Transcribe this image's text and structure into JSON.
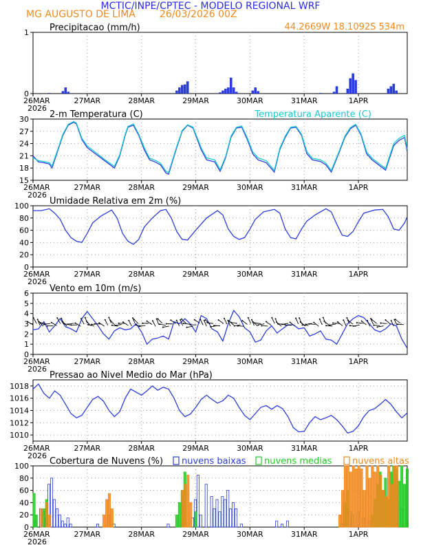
{
  "header": {
    "title": "MCTIC/INPE/CPTEC - MODELO REGIONAL WRF",
    "location": "MG AUGUSTO DE LIMA",
    "run": "26/03/2026 00Z",
    "coords": "44.2669W 18.1092S 534m"
  },
  "colors": {
    "title": "#2a2ae6",
    "orange": "#f08a1e",
    "blue": "#2a3cdc",
    "cyan": "#18c8d0",
    "green": "#22cc22",
    "grid": "#999999"
  },
  "xaxis": {
    "ticks": [
      {
        "label": "26MAR",
        "sub": "2026",
        "day": 0
      },
      {
        "label": "27MAR",
        "sub": "",
        "day": 1
      },
      {
        "label": "28MAR",
        "sub": "",
        "day": 2
      },
      {
        "label": "29MAR",
        "sub": "",
        "day": 3
      },
      {
        "label": "30MAR",
        "sub": "",
        "day": 4
      },
      {
        "label": "31MAR",
        "sub": "",
        "day": 5
      },
      {
        "label": "1APR",
        "sub": "",
        "day": 6
      }
    ],
    "range_days": [
      0,
      6.9
    ]
  },
  "chart_data": [
    {
      "id": "precip",
      "type": "bar",
      "title": "Precipitacao (mm/h)",
      "ylim": [
        0,
        1
      ],
      "yticks": [
        "0",
        "1"
      ],
      "x_days": [
        0.3,
        0.55,
        0.6,
        0.65,
        2.65,
        2.7,
        2.75,
        2.8,
        2.85,
        3.45,
        3.5,
        3.55,
        3.6,
        3.65,
        3.7,
        3.75,
        4.05,
        4.1,
        4.15,
        5.3,
        5.55,
        5.6,
        5.8,
        5.85,
        5.9,
        5.95,
        6.55,
        6.6,
        6.65,
        6.7
      ],
      "values": [
        0.01,
        0.04,
        0.1,
        0.03,
        0.05,
        0.1,
        0.14,
        0.15,
        0.2,
        0.02,
        0.05,
        0.08,
        0.1,
        0.26,
        0.1,
        0.03,
        0.05,
        0.1,
        0.04,
        0.01,
        0.03,
        0.12,
        0.08,
        0.25,
        0.33,
        0.22,
        0.08,
        0.12,
        0.16,
        0.05
      ]
    },
    {
      "id": "temp",
      "type": "line",
      "title": "2-m Temperatura (C)",
      "legend": "Temperatura Aparente (C)",
      "ylim": [
        15,
        30
      ],
      "yticks": [
        "15",
        "18",
        "21",
        "24",
        "27",
        "30"
      ],
      "series": [
        {
          "name": "2-m Temperatura (C)",
          "x_days": [
            0,
            0.1,
            0.2,
            0.3,
            0.35,
            0.45,
            0.55,
            0.65,
            0.75,
            0.8,
            0.9,
            1.0,
            1.1,
            1.3,
            1.5,
            1.6,
            1.7,
            1.75,
            1.85,
            1.95,
            2.05,
            2.15,
            2.25,
            2.35,
            2.45,
            2.5,
            2.65,
            2.75,
            2.85,
            2.95,
            3.1,
            3.2,
            3.35,
            3.45,
            3.55,
            3.65,
            3.75,
            3.85,
            3.95,
            4.05,
            4.15,
            4.3,
            4.45,
            4.55,
            4.65,
            4.75,
            4.85,
            4.95,
            5.05,
            5.15,
            5.3,
            5.4,
            5.5,
            5.65,
            5.75,
            5.85,
            5.95,
            6.05,
            6.15,
            6.25,
            6.4,
            6.5,
            6.65,
            6.75,
            6.85,
            6.9
          ],
          "values": [
            21,
            19.5,
            19.3,
            19,
            18,
            22,
            26,
            28.5,
            29.2,
            28.8,
            25,
            23,
            22,
            20,
            18,
            21,
            26,
            28,
            28.5,
            26,
            22.5,
            20,
            19.5,
            18.8,
            16.8,
            16.5,
            23,
            27,
            28.5,
            27.8,
            22.5,
            20,
            19.5,
            17.2,
            20.5,
            25.5,
            27.8,
            28,
            25,
            21.5,
            20,
            19.3,
            17,
            22.5,
            25.5,
            27.8,
            28,
            26,
            21.5,
            20,
            19.6,
            18.8,
            17,
            22,
            25.5,
            27.6,
            28.5,
            26,
            21.5,
            20,
            18.5,
            17.5,
            23.5,
            24.8,
            25.5,
            22
          ]
        },
        {
          "name": "Temperatura Aparente (C)",
          "x_days": [
            0,
            0.1,
            0.2,
            0.3,
            0.35,
            0.45,
            0.55,
            0.65,
            0.75,
            0.8,
            0.9,
            1.0,
            1.1,
            1.3,
            1.5,
            1.6,
            1.7,
            1.75,
            1.85,
            1.95,
            2.05,
            2.15,
            2.25,
            2.35,
            2.45,
            2.5,
            2.65,
            2.75,
            2.85,
            2.95,
            3.1,
            3.2,
            3.35,
            3.45,
            3.55,
            3.65,
            3.75,
            3.85,
            3.95,
            4.05,
            4.15,
            4.3,
            4.45,
            4.55,
            4.65,
            4.75,
            4.85,
            4.95,
            5.05,
            5.15,
            5.3,
            5.4,
            5.5,
            5.65,
            5.75,
            5.85,
            5.95,
            6.05,
            6.15,
            6.25,
            6.4,
            6.5,
            6.65,
            6.75,
            6.85,
            6.9
          ],
          "values": [
            20.5,
            19.8,
            19.6,
            19.3,
            18.5,
            22.3,
            26.3,
            28.7,
            29.4,
            29,
            25.3,
            23.4,
            22.4,
            20.3,
            18.4,
            21.3,
            26.3,
            28.2,
            28.8,
            26.3,
            23,
            20.4,
            19.9,
            19.2,
            17.2,
            16.9,
            23.3,
            27.2,
            28.6,
            28,
            23,
            20.5,
            20,
            17.6,
            20.8,
            25.8,
            28,
            28.3,
            25.4,
            22,
            20.5,
            19.8,
            17.4,
            22.8,
            25.8,
            28,
            28.2,
            26.3,
            22,
            20.4,
            20,
            19.2,
            17.4,
            22.3,
            25.8,
            27.9,
            28.7,
            26.3,
            22,
            20.4,
            18.9,
            17.9,
            24,
            25.3,
            26,
            22.6
          ]
        }
      ]
    },
    {
      "id": "rh",
      "type": "line",
      "title": "Umidade Relativa em 2m (%)",
      "ylim": [
        0,
        100
      ],
      "yticks": [
        "0",
        "20",
        "40",
        "60",
        "80",
        "100"
      ],
      "series": [
        {
          "name": "Umidade Relativa",
          "x_days": [
            0,
            0.15,
            0.3,
            0.4,
            0.5,
            0.6,
            0.7,
            0.8,
            0.9,
            1.0,
            1.1,
            1.25,
            1.45,
            1.55,
            1.65,
            1.75,
            1.85,
            1.95,
            2.05,
            2.2,
            2.35,
            2.45,
            2.55,
            2.65,
            2.75,
            2.85,
            3.0,
            3.2,
            3.4,
            3.5,
            3.6,
            3.7,
            3.8,
            3.9,
            4.0,
            4.1,
            4.25,
            4.45,
            4.55,
            4.65,
            4.75,
            4.85,
            4.95,
            5.05,
            5.2,
            5.4,
            5.5,
            5.6,
            5.7,
            5.8,
            5.9,
            6.0,
            6.1,
            6.3,
            6.45,
            6.55,
            6.65,
            6.75,
            6.85,
            6.9
          ],
          "values": [
            92,
            92,
            95,
            88,
            78,
            60,
            48,
            42,
            40,
            55,
            72,
            83,
            93,
            80,
            55,
            42,
            37,
            45,
            65,
            80,
            92,
            94,
            80,
            58,
            45,
            44,
            60,
            80,
            92,
            85,
            62,
            50,
            45,
            48,
            62,
            78,
            90,
            94,
            88,
            62,
            48,
            46,
            62,
            75,
            85,
            95,
            90,
            70,
            52,
            50,
            58,
            74,
            88,
            93,
            94,
            82,
            62,
            60,
            72,
            82
          ]
        }
      ]
    },
    {
      "id": "wind",
      "type": "line",
      "title": "Vento em 10m (m/s)",
      "ylim": [
        0,
        6
      ],
      "yticks": [
        "0",
        "1",
        "2",
        "3",
        "4",
        "5",
        "6"
      ],
      "series": [
        {
          "name": "Vento",
          "x_days": [
            0,
            0.1,
            0.2,
            0.3,
            0.4,
            0.5,
            0.6,
            0.7,
            0.8,
            0.9,
            1.0,
            1.1,
            1.2,
            1.3,
            1.4,
            1.5,
            1.6,
            1.7,
            1.8,
            1.9,
            2.0,
            2.1,
            2.2,
            2.3,
            2.4,
            2.5,
            2.6,
            2.7,
            2.8,
            2.9,
            3.0,
            3.1,
            3.2,
            3.3,
            3.4,
            3.5,
            3.6,
            3.7,
            3.8,
            3.9,
            4.0,
            4.1,
            4.2,
            4.3,
            4.4,
            4.5,
            4.6,
            4.7,
            4.8,
            4.9,
            5.0,
            5.1,
            5.2,
            5.3,
            5.4,
            5.5,
            5.6,
            5.7,
            5.8,
            5.9,
            6.0,
            6.1,
            6.2,
            6.3,
            6.4,
            6.5,
            6.6,
            6.7,
            6.8,
            6.9
          ],
          "values": [
            2.4,
            2.5,
            3.2,
            2.2,
            2.8,
            3.5,
            2.7,
            2.5,
            2.2,
            3.5,
            4.2,
            3.5,
            2.8,
            2.0,
            1.5,
            2.3,
            2.6,
            2.4,
            2.5,
            3.0,
            2.2,
            1.0,
            1.5,
            1.6,
            1.8,
            1.5,
            3.2,
            3.0,
            3.5,
            3.0,
            2.2,
            3.8,
            3.5,
            2.5,
            2.2,
            1.3,
            3.0,
            4.3,
            3.7,
            2.6,
            2.2,
            1.2,
            1.4,
            2.3,
            2.8,
            2.1,
            2.5,
            2.9,
            2.9,
            2.5,
            2.6,
            1.8,
            2.0,
            2.3,
            1.5,
            1.4,
            1.0,
            2.0,
            3.0,
            3.5,
            3.8,
            3.6,
            3.0,
            2.4,
            2.2,
            2.5,
            3.0,
            2.8,
            1.5,
            0.6
          ]
        }
      ]
    },
    {
      "id": "pressure",
      "type": "line",
      "title": "Pressao ao Nivel Medio do Mar (hPa)",
      "ylim": [
        1009,
        1019
      ],
      "yticks": [
        "1010",
        "1012",
        "1014",
        "1016",
        "1018"
      ],
      "series": [
        {
          "name": "Pressao",
          "x_days": [
            0,
            0.1,
            0.2,
            0.3,
            0.4,
            0.5,
            0.6,
            0.7,
            0.8,
            0.9,
            1.0,
            1.1,
            1.2,
            1.3,
            1.4,
            1.5,
            1.6,
            1.7,
            1.8,
            1.9,
            2.0,
            2.1,
            2.2,
            2.3,
            2.4,
            2.5,
            2.6,
            2.7,
            2.8,
            2.9,
            3.0,
            3.1,
            3.2,
            3.3,
            3.4,
            3.5,
            3.6,
            3.7,
            3.8,
            3.9,
            4.0,
            4.1,
            4.2,
            4.3,
            4.4,
            4.5,
            4.6,
            4.7,
            4.8,
            4.9,
            5.0,
            5.1,
            5.2,
            5.3,
            5.4,
            5.5,
            5.6,
            5.7,
            5.8,
            5.9,
            6.0,
            6.1,
            6.2,
            6.3,
            6.4,
            6.5,
            6.6,
            6.7,
            6.8,
            6.9
          ],
          "values": [
            1017.5,
            1018.3,
            1016.8,
            1016.0,
            1017.2,
            1016.5,
            1015.0,
            1013.5,
            1012.8,
            1013.2,
            1014.5,
            1015.8,
            1016.3,
            1015.5,
            1014.0,
            1013.0,
            1013.8,
            1016.0,
            1017.5,
            1017.0,
            1016.5,
            1017.2,
            1018.0,
            1017.3,
            1017.8,
            1017.5,
            1016.0,
            1014.0,
            1013.0,
            1013.4,
            1014.5,
            1015.8,
            1016.5,
            1015.8,
            1015.2,
            1015.6,
            1016.5,
            1016.0,
            1014.5,
            1013.2,
            1012.5,
            1013.5,
            1014.5,
            1014.8,
            1014.2,
            1014.8,
            1014.3,
            1013.0,
            1011.2,
            1010.5,
            1010.6,
            1012.0,
            1013.0,
            1012.5,
            1012.8,
            1013.2,
            1012.5,
            1011.5,
            1010.3,
            1010.6,
            1011.5,
            1013.0,
            1014.0,
            1014.3,
            1015.0,
            1015.8,
            1015.0,
            1013.8,
            1012.8,
            1013.6
          ]
        }
      ]
    },
    {
      "id": "clouds",
      "type": "bar",
      "title": "Cobertura de Nuvens (%)",
      "legend": [
        "nuvens baixas",
        "nuvens medias",
        "nuvens altas"
      ],
      "ylim": [
        0,
        100
      ],
      "yticks": [
        "0",
        "20",
        "40",
        "60",
        "80",
        "100"
      ],
      "series": [
        {
          "name": "nuvens baixas",
          "x_days": [
            0.05,
            0.15,
            0.2,
            0.25,
            0.3,
            0.35,
            0.4,
            0.45,
            0.5,
            0.55,
            0.6,
            0.65,
            0.7,
            1.2,
            1.4,
            1.5,
            2.5,
            2.75,
            2.95,
            3.0,
            3.05,
            3.1,
            3.2,
            3.3,
            3.35,
            3.4,
            3.45,
            3.5,
            3.55,
            3.6,
            3.65,
            3.7,
            3.75,
            3.85,
            4.5,
            4.6,
            4.7,
            5.7,
            5.75,
            5.8,
            5.85,
            5.9,
            6.0,
            6.1,
            6.2,
            6.4,
            6.7,
            6.8,
            6.9
          ],
          "values": [
            10,
            30,
            25,
            15,
            70,
            80,
            45,
            30,
            20,
            10,
            5,
            15,
            5,
            5,
            20,
            5,
            5,
            5,
            15,
            45,
            85,
            20,
            70,
            50,
            30,
            45,
            25,
            50,
            45,
            60,
            30,
            40,
            30,
            5,
            10,
            5,
            10,
            5,
            40,
            30,
            25,
            20,
            25,
            15,
            10,
            5,
            5,
            30,
            10
          ]
        },
        {
          "name": "nuvens medias",
          "x_days": [
            0.02,
            0.06,
            0.2,
            0.25,
            2.65,
            2.7,
            2.75,
            2.8,
            3.0,
            5.75,
            5.8,
            6.25,
            6.3,
            6.35,
            6.4,
            6.45,
            6.5,
            6.55,
            6.6,
            6.65,
            6.7,
            6.75,
            6.8,
            6.85,
            6.9
          ],
          "values": [
            55,
            20,
            30,
            45,
            20,
            40,
            60,
            90,
            25,
            40,
            60,
            20,
            45,
            70,
            90,
            60,
            80,
            45,
            90,
            100,
            95,
            75,
            100,
            70,
            95
          ]
        },
        {
          "name": "nuvens altas",
          "x_days": [
            0.15,
            0.25,
            0.3,
            1.3,
            1.35,
            1.4,
            1.45,
            2.75,
            2.8,
            2.85,
            2.9,
            5.65,
            5.7,
            5.75,
            5.8,
            5.85,
            5.9,
            5.95,
            6.0,
            6.05,
            6.1,
            6.15,
            6.2,
            6.25,
            6.3,
            6.35,
            6.4,
            6.45,
            6.5,
            6.55,
            6.6,
            6.65,
            6.7
          ],
          "values": [
            30,
            40,
            20,
            20,
            45,
            55,
            30,
            60,
            70,
            85,
            40,
            20,
            60,
            100,
            100,
            90,
            100,
            95,
            100,
            95,
            60,
            100,
            80,
            100,
            90,
            100,
            85,
            60,
            50,
            100,
            70,
            100,
            100
          ]
        }
      ]
    }
  ]
}
